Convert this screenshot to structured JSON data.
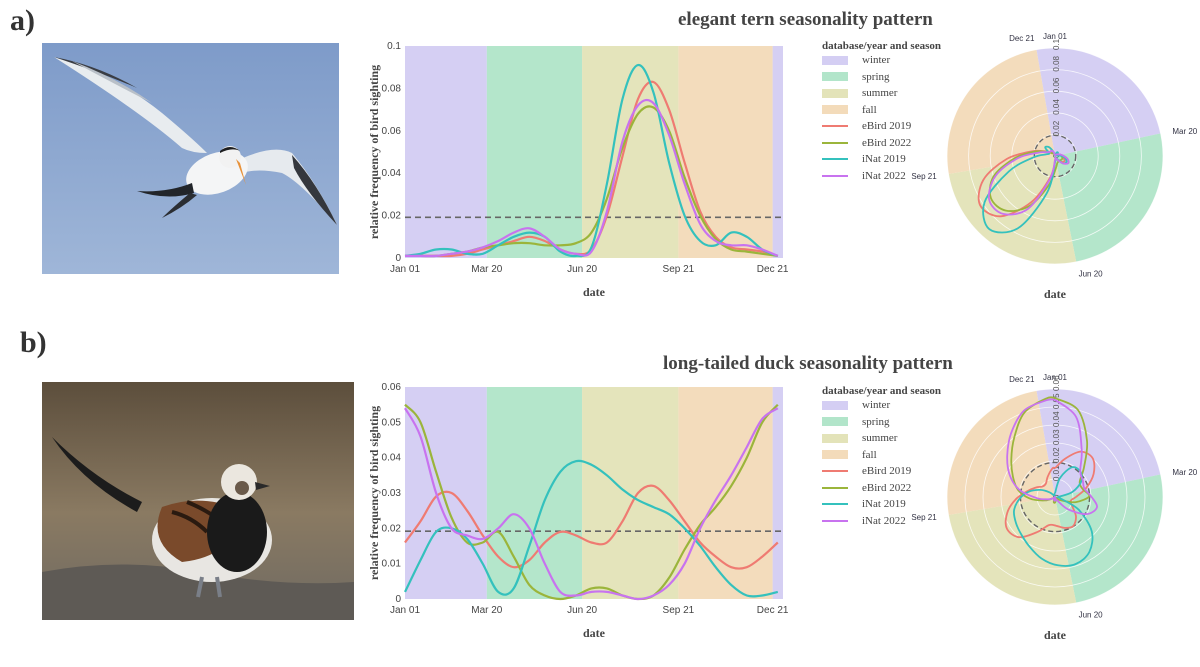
{
  "colors": {
    "winter": "#c9c2f0",
    "spring": "#9fdfbd",
    "summer": "#dcdca8",
    "fall": "#f0d2a9",
    "eBird 2019": "#ef7b72",
    "eBird 2022": "#9bb53b",
    "iNat 2019": "#34c1bd",
    "iNat 2022": "#c873ef"
  },
  "panels": [
    {
      "label": "a)",
      "title": "elegant tern seasonality pattern",
      "photo": "elegant tern flying",
      "chart_data": {
        "type": "line",
        "xlabel": "date",
        "ylabel": "relative frequency of bird sighting",
        "ylim": [
          0,
          0.1
        ],
        "yticks": [
          0,
          0.02,
          0.04,
          0.06,
          0.08,
          0.1
        ],
        "ytick_labels": [
          "0",
          "0.02",
          "0.04",
          "0.06",
          "0.08",
          "0.1"
        ],
        "xticks": [
          {
            "day": 0,
            "label": "Jan 01"
          },
          {
            "day": 79,
            "label": "Mar 20"
          },
          {
            "day": 171,
            "label": "Jun 20"
          },
          {
            "day": 264,
            "label": "Sep 21"
          },
          {
            "day": 355,
            "label": "Dec 21"
          }
        ],
        "xlim": [
          0,
          365
        ],
        "baseline": 0.0192,
        "seasons": [
          {
            "name": "winter",
            "start": 0,
            "end": 79
          },
          {
            "name": "spring",
            "start": 79,
            "end": 171
          },
          {
            "name": "summer",
            "start": 171,
            "end": 264
          },
          {
            "name": "fall",
            "start": 264,
            "end": 355
          },
          {
            "name": "winter",
            "start": 355,
            "end": 365
          }
        ],
        "legend_title": "database/year and season",
        "legend": [
          "winter",
          "spring",
          "summer",
          "fall",
          "eBird 2019",
          "eBird 2022",
          "iNat 2019",
          "iNat 2022"
        ],
        "x": [
          0,
          15,
          30,
          45,
          60,
          75,
          90,
          105,
          120,
          135,
          150,
          165,
          180,
          195,
          210,
          225,
          240,
          255,
          270,
          285,
          300,
          315,
          330,
          345,
          360
        ],
        "series": [
          {
            "name": "eBird 2019",
            "values": [
              0.001,
              0.001,
              0.001,
              0.001,
              0.002,
              0.004,
              0.006,
              0.008,
              0.01,
              0.008,
              0.004,
              0.002,
              0.004,
              0.02,
              0.048,
              0.075,
              0.083,
              0.07,
              0.045,
              0.022,
              0.01,
              0.005,
              0.004,
              0.003,
              0.001
            ]
          },
          {
            "name": "eBird 2022",
            "values": [
              0.001,
              0.001,
              0.001,
              0.002,
              0.003,
              0.005,
              0.006,
              0.007,
              0.007,
              0.006,
              0.006,
              0.007,
              0.012,
              0.028,
              0.052,
              0.068,
              0.071,
              0.06,
              0.038,
              0.02,
              0.009,
              0.004,
              0.003,
              0.002,
              0.001
            ]
          },
          {
            "name": "iNat 2019",
            "values": [
              0.001,
              0.002,
              0.004,
              0.004,
              0.002,
              0.002,
              0.006,
              0.01,
              0.012,
              0.01,
              0.003,
              0.001,
              0.005,
              0.035,
              0.075,
              0.091,
              0.078,
              0.045,
              0.02,
              0.008,
              0.006,
              0.012,
              0.01,
              0.004,
              0.001
            ]
          },
          {
            "name": "iNat 2022",
            "values": [
              0.001,
              0.001,
              0.001,
              0.002,
              0.003,
              0.005,
              0.008,
              0.012,
              0.014,
              0.01,
              0.004,
              0.002,
              0.003,
              0.022,
              0.055,
              0.072,
              0.073,
              0.058,
              0.035,
              0.016,
              0.008,
              0.006,
              0.006,
              0.004,
              0.001
            ]
          }
        ],
        "polar": {
          "theta_labels": [
            "Jan 01",
            "Mar 20",
            "Jun 20",
            "Sep 21",
            "Dec 21"
          ],
          "r_ticks": [
            "0",
            "0.02",
            "0.04",
            "0.06",
            "0.08",
            "0.1"
          ],
          "rmax": 0.1
        }
      }
    },
    {
      "label": "b)",
      "title": "long-tailed duck seasonality pattern",
      "photo": "long-tailed duck standing",
      "chart_data": {
        "type": "line",
        "xlabel": "date",
        "ylabel": "relative frequency of bird sighting",
        "ylim": [
          0,
          0.06
        ],
        "yticks": [
          0,
          0.01,
          0.02,
          0.03,
          0.04,
          0.05,
          0.06
        ],
        "ytick_labels": [
          "0",
          "0.01",
          "0.02",
          "0.03",
          "0.04",
          "0.05",
          "0.06"
        ],
        "xticks": [
          {
            "day": 0,
            "label": "Jan 01"
          },
          {
            "day": 79,
            "label": "Mar 20"
          },
          {
            "day": 171,
            "label": "Jun 20"
          },
          {
            "day": 264,
            "label": "Sep 21"
          },
          {
            "day": 355,
            "label": "Dec 21"
          }
        ],
        "xlim": [
          0,
          365
        ],
        "baseline": 0.0192,
        "seasons": [
          {
            "name": "winter",
            "start": 0,
            "end": 79
          },
          {
            "name": "spring",
            "start": 79,
            "end": 171
          },
          {
            "name": "summer",
            "start": 171,
            "end": 264
          },
          {
            "name": "fall",
            "start": 264,
            "end": 355
          },
          {
            "name": "winter",
            "start": 355,
            "end": 365
          }
        ],
        "legend_title": "database/year and season",
        "legend": [
          "winter",
          "spring",
          "summer",
          "fall",
          "eBird 2019",
          "eBird 2022",
          "iNat 2019",
          "iNat 2022"
        ],
        "x": [
          0,
          15,
          30,
          45,
          60,
          75,
          90,
          105,
          120,
          135,
          150,
          165,
          180,
          195,
          210,
          225,
          240,
          255,
          270,
          285,
          300,
          315,
          330,
          345,
          360
        ],
        "series": [
          {
            "name": "eBird 2019",
            "values": [
              0.016,
              0.022,
              0.029,
              0.03,
              0.025,
              0.018,
              0.012,
              0.009,
              0.011,
              0.016,
              0.019,
              0.018,
              0.016,
              0.016,
              0.022,
              0.03,
              0.032,
              0.028,
              0.022,
              0.016,
              0.012,
              0.009,
              0.009,
              0.012,
              0.016
            ]
          },
          {
            "name": "eBird 2022",
            "values": [
              0.055,
              0.05,
              0.036,
              0.023,
              0.016,
              0.016,
              0.019,
              0.012,
              0.004,
              0.001,
              0.0,
              0.001,
              0.003,
              0.003,
              0.001,
              0.0,
              0.001,
              0.006,
              0.014,
              0.021,
              0.026,
              0.032,
              0.04,
              0.05,
              0.055
            ]
          },
          {
            "name": "iNat 2019",
            "values": [
              0.002,
              0.011,
              0.019,
              0.02,
              0.017,
              0.01,
              0.002,
              0.003,
              0.015,
              0.028,
              0.036,
              0.039,
              0.038,
              0.035,
              0.031,
              0.028,
              0.026,
              0.024,
              0.02,
              0.015,
              0.009,
              0.004,
              0.001,
              0.001,
              0.002
            ]
          },
          {
            "name": "iNat 2022",
            "values": [
              0.054,
              0.046,
              0.03,
              0.02,
              0.018,
              0.017,
              0.02,
              0.024,
              0.02,
              0.01,
              0.002,
              0.001,
              0.002,
              0.002,
              0.001,
              0.0,
              0.001,
              0.004,
              0.01,
              0.02,
              0.028,
              0.035,
              0.043,
              0.051,
              0.054
            ]
          }
        ],
        "polar": {
          "theta_labels": [
            "Jan 01",
            "Mar 20",
            "Jun 20",
            "Sep 21",
            "Dec 21"
          ],
          "r_ticks": [
            "0",
            "0.01",
            "0.02",
            "0.03",
            "0.04",
            "0.05",
            "0.06"
          ],
          "rmax": 0.06
        }
      }
    }
  ]
}
